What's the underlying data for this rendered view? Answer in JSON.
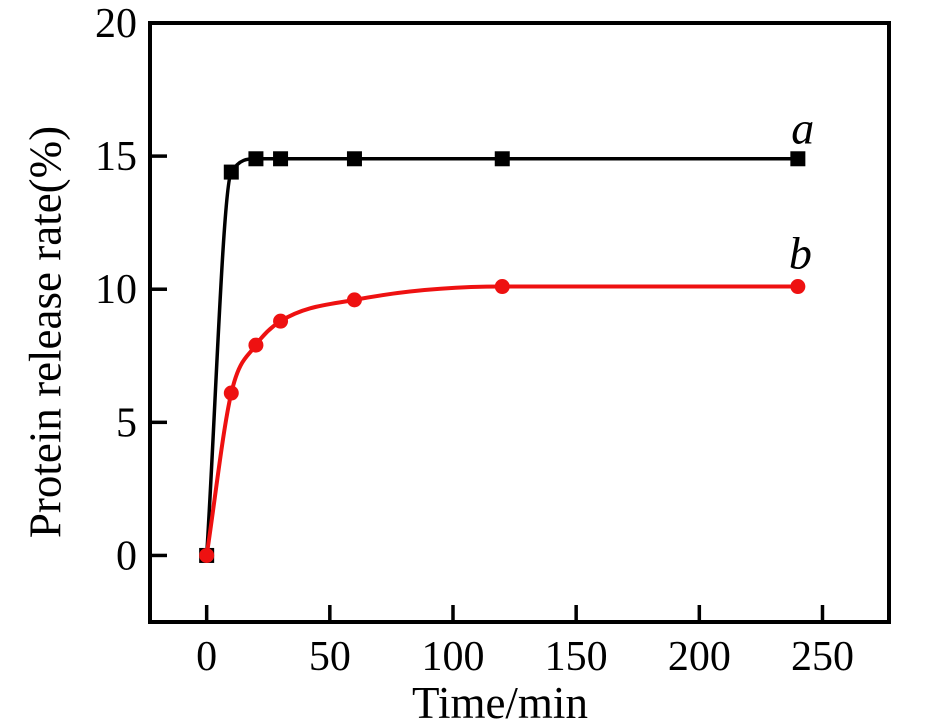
{
  "figure": {
    "background": "#ffffff",
    "axis_color": "#000000"
  },
  "chart_data": {
    "type": "line",
    "title": "",
    "xlabel": "Time/min",
    "ylabel": "Protein release rate(%)",
    "xlim": [
      -23,
      277
    ],
    "ylim": [
      -2.5,
      20
    ],
    "xticks": [
      0,
      50,
      100,
      150,
      200,
      250
    ],
    "yticks": [
      0,
      5,
      10,
      15,
      20
    ],
    "grid": false,
    "legend_position": "none",
    "series": [
      {
        "name": "a",
        "label": "a",
        "color": "#000000",
        "marker": "square",
        "x": [
          0,
          10,
          20,
          30,
          60,
          120,
          240
        ],
        "y": [
          0,
          14.4,
          14.9,
          14.9,
          14.9,
          14.9,
          14.9
        ]
      },
      {
        "name": "b",
        "label": "b",
        "color": "#ee1111",
        "marker": "circle",
        "x": [
          0,
          10,
          20,
          30,
          60,
          120,
          240
        ],
        "y": [
          0,
          6.1,
          7.9,
          8.8,
          9.6,
          10.1,
          10.1
        ]
      }
    ],
    "annotations": [
      {
        "text": "a",
        "x": 242,
        "y": 16.0
      },
      {
        "text": "b",
        "x": 241,
        "y": 11.3
      }
    ]
  }
}
